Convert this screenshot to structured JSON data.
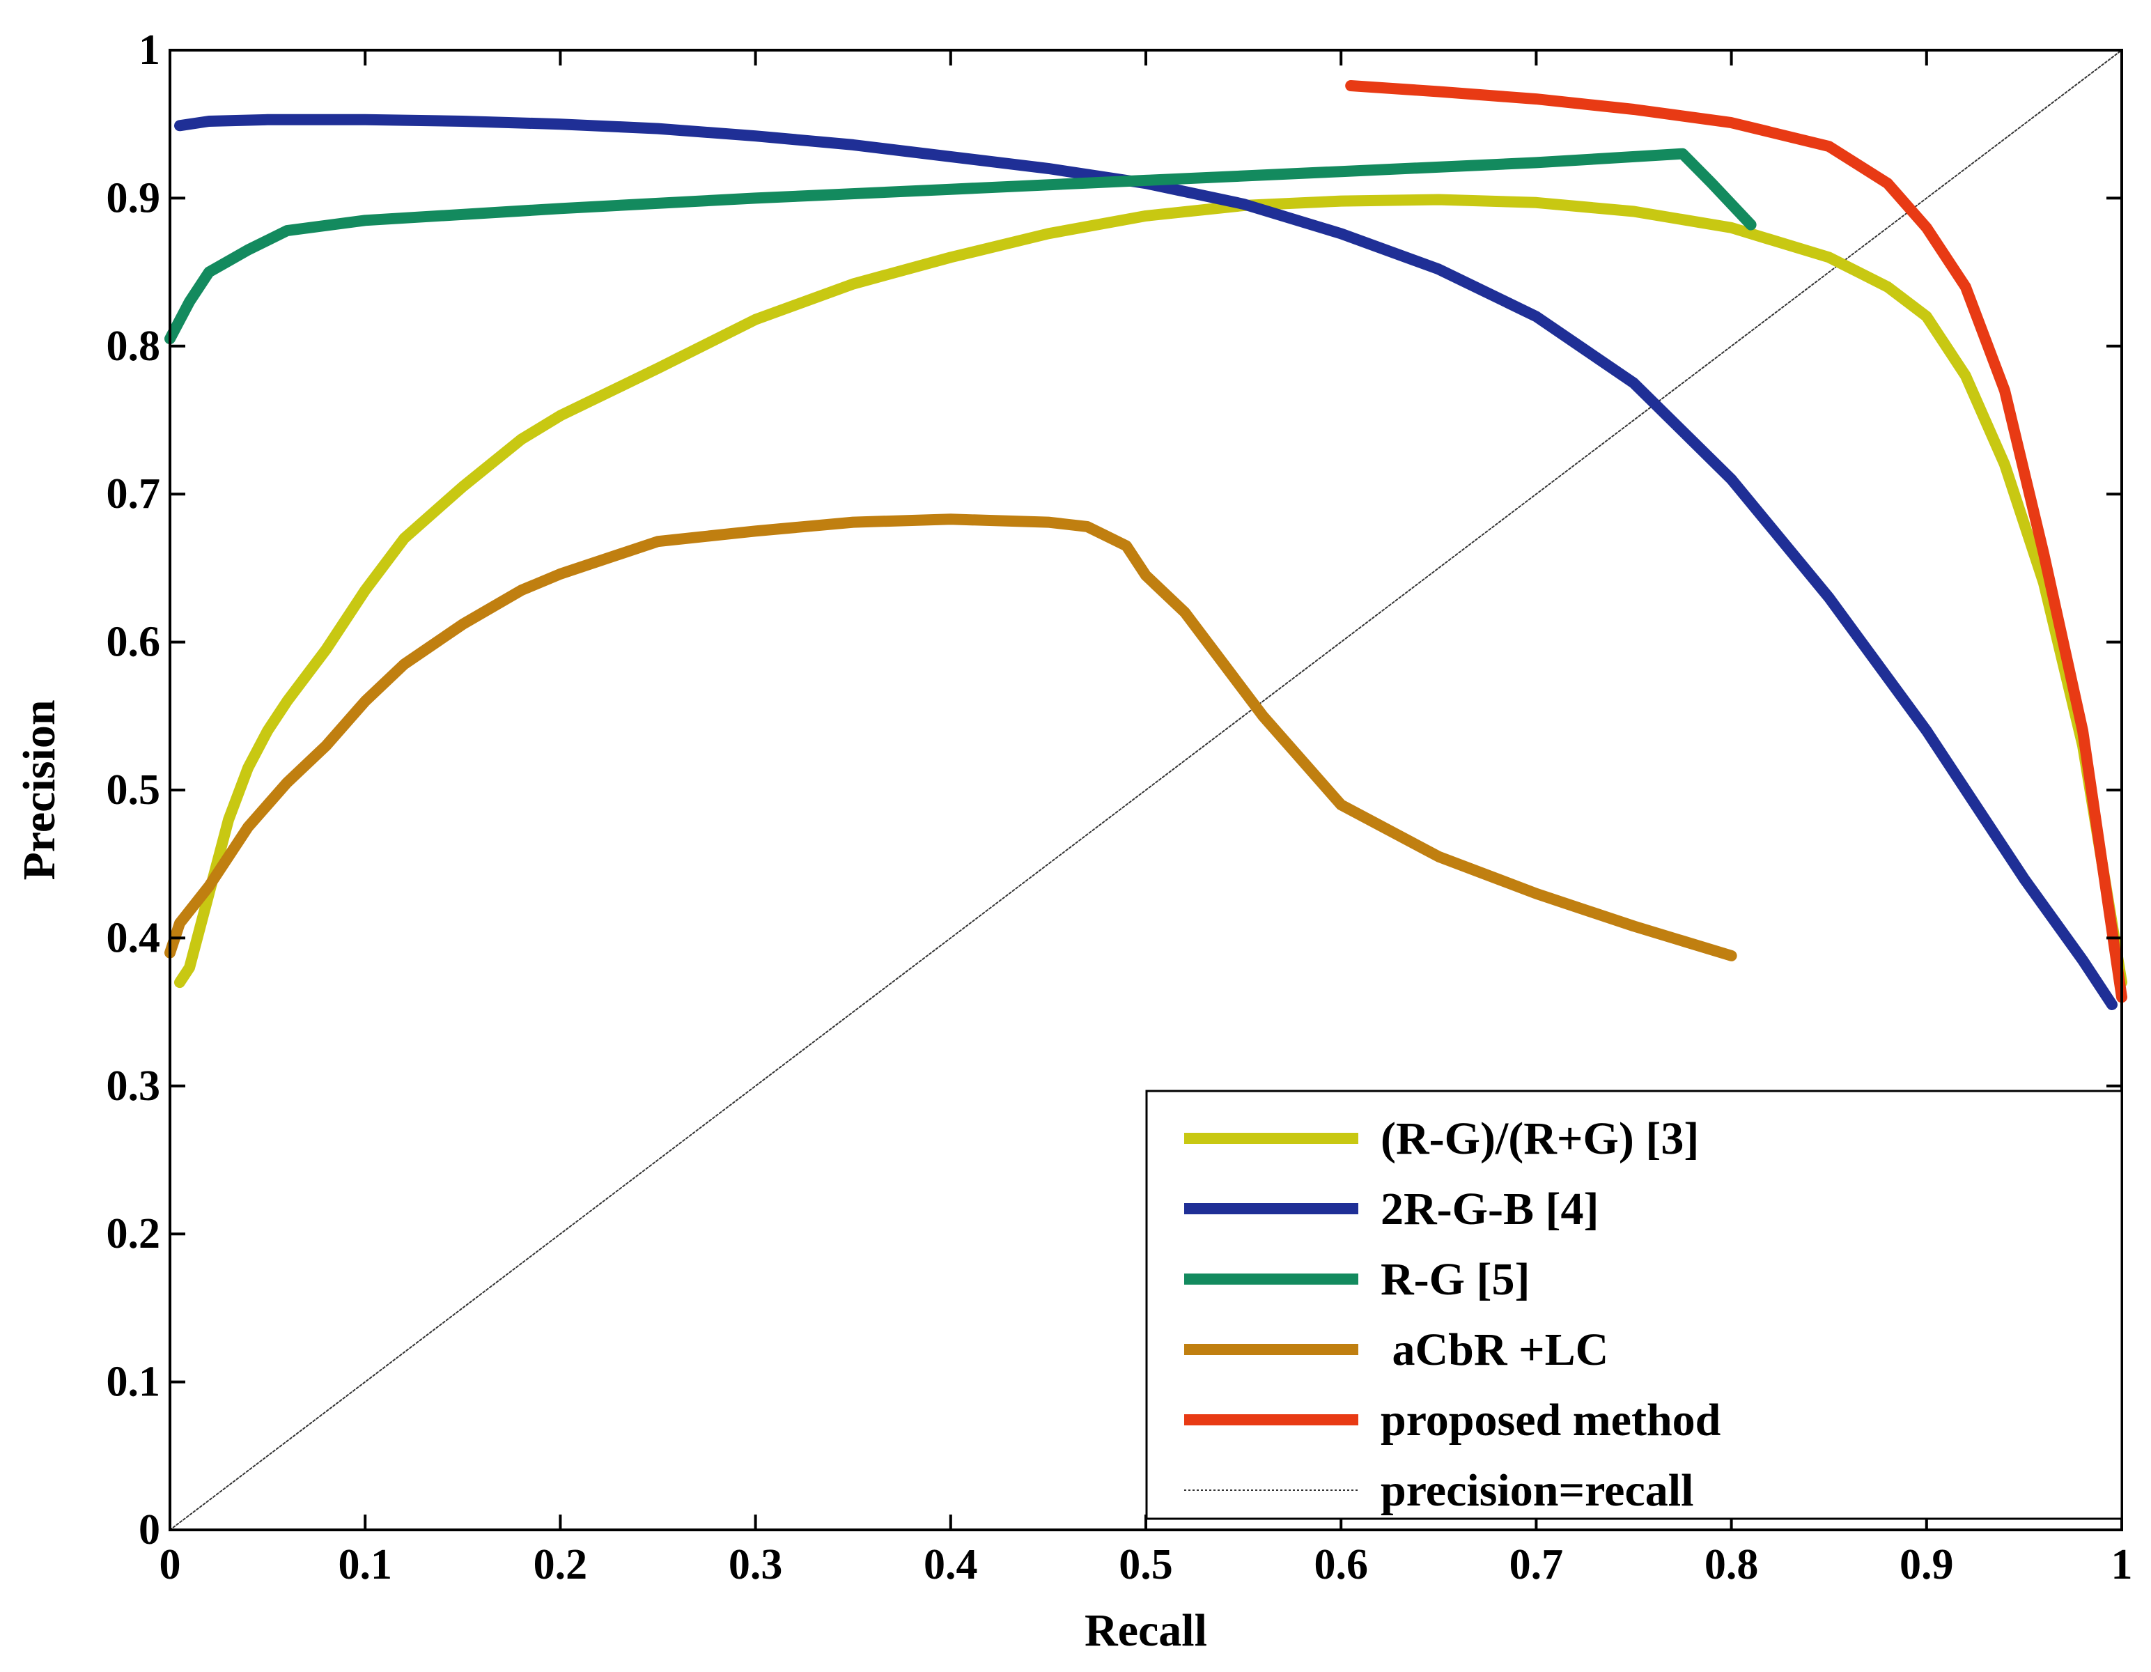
{
  "chart_data": {
    "type": "line",
    "title": "",
    "xlabel": "Recall",
    "ylabel": "Precision",
    "xlim": [
      0,
      1
    ],
    "ylim": [
      0,
      1
    ],
    "xticks": [
      0,
      0.1,
      0.2,
      0.3,
      0.4,
      0.5,
      0.6,
      0.7,
      0.8,
      0.9,
      1
    ],
    "xtick_labels": [
      "0",
      "0.1",
      "0.2",
      "0.3",
      "0.4",
      "0.5",
      "0.6",
      "0.7",
      "0.8",
      "0.9",
      "1"
    ],
    "yticks": [
      0,
      0.1,
      0.2,
      0.3,
      0.4,
      0.5,
      0.6,
      0.7,
      0.8,
      0.9,
      1
    ],
    "ytick_labels": [
      "0",
      "0.1",
      "0.2",
      "0.3",
      "0.4",
      "0.5",
      "0.6",
      "0.7",
      "0.8",
      "0.9",
      "1"
    ],
    "grid": false,
    "legend_position": "bottom-right",
    "series": [
      {
        "name": "(R-G)/(R+G) [3]",
        "color": "#c8c812",
        "style": "solid",
        "points": [
          [
            0.005,
            0.37
          ],
          [
            0.01,
            0.38
          ],
          [
            0.02,
            0.43
          ],
          [
            0.03,
            0.48
          ],
          [
            0.04,
            0.515
          ],
          [
            0.05,
            0.54
          ],
          [
            0.06,
            0.56
          ],
          [
            0.08,
            0.595
          ],
          [
            0.1,
            0.635
          ],
          [
            0.12,
            0.67
          ],
          [
            0.15,
            0.705
          ],
          [
            0.18,
            0.737
          ],
          [
            0.2,
            0.753
          ],
          [
            0.25,
            0.785
          ],
          [
            0.3,
            0.818
          ],
          [
            0.35,
            0.842
          ],
          [
            0.4,
            0.86
          ],
          [
            0.45,
            0.876
          ],
          [
            0.5,
            0.888
          ],
          [
            0.55,
            0.895
          ],
          [
            0.6,
            0.898
          ],
          [
            0.65,
            0.899
          ],
          [
            0.7,
            0.897
          ],
          [
            0.75,
            0.891
          ],
          [
            0.8,
            0.88
          ],
          [
            0.85,
            0.86
          ],
          [
            0.88,
            0.84
          ],
          [
            0.9,
            0.82
          ],
          [
            0.92,
            0.78
          ],
          [
            0.94,
            0.72
          ],
          [
            0.96,
            0.64
          ],
          [
            0.98,
            0.53
          ],
          [
            1.0,
            0.37
          ]
        ]
      },
      {
        "name": "2R-G-B [4]",
        "color": "#1f2f96",
        "style": "solid",
        "points": [
          [
            0.005,
            0.949
          ],
          [
            0.02,
            0.952
          ],
          [
            0.05,
            0.953
          ],
          [
            0.1,
            0.953
          ],
          [
            0.15,
            0.952
          ],
          [
            0.2,
            0.95
          ],
          [
            0.25,
            0.947
          ],
          [
            0.3,
            0.942
          ],
          [
            0.35,
            0.936
          ],
          [
            0.4,
            0.928
          ],
          [
            0.45,
            0.92
          ],
          [
            0.5,
            0.91
          ],
          [
            0.55,
            0.896
          ],
          [
            0.6,
            0.876
          ],
          [
            0.65,
            0.852
          ],
          [
            0.7,
            0.82
          ],
          [
            0.75,
            0.775
          ],
          [
            0.8,
            0.71
          ],
          [
            0.85,
            0.63
          ],
          [
            0.9,
            0.54
          ],
          [
            0.95,
            0.44
          ],
          [
            0.98,
            0.385
          ],
          [
            0.995,
            0.355
          ]
        ]
      },
      {
        "name": "R-G [5]",
        "color": "#138a5e",
        "style": "solid",
        "points": [
          [
            0.0,
            0.805
          ],
          [
            0.01,
            0.83
          ],
          [
            0.02,
            0.85
          ],
          [
            0.04,
            0.865
          ],
          [
            0.06,
            0.878
          ],
          [
            0.1,
            0.885
          ],
          [
            0.2,
            0.893
          ],
          [
            0.3,
            0.9
          ],
          [
            0.4,
            0.906
          ],
          [
            0.5,
            0.912
          ],
          [
            0.6,
            0.918
          ],
          [
            0.7,
            0.924
          ],
          [
            0.775,
            0.93
          ],
          [
            0.79,
            0.91
          ],
          [
            0.81,
            0.882
          ]
        ]
      },
      {
        "name": " aCbR +LC",
        "color": "#c07f10",
        "style": "solid",
        "points": [
          [
            0.0,
            0.39
          ],
          [
            0.005,
            0.41
          ],
          [
            0.02,
            0.435
          ],
          [
            0.04,
            0.475
          ],
          [
            0.06,
            0.505
          ],
          [
            0.08,
            0.53
          ],
          [
            0.1,
            0.56
          ],
          [
            0.12,
            0.585
          ],
          [
            0.15,
            0.612
          ],
          [
            0.18,
            0.635
          ],
          [
            0.2,
            0.646
          ],
          [
            0.25,
            0.668
          ],
          [
            0.3,
            0.675
          ],
          [
            0.35,
            0.681
          ],
          [
            0.4,
            0.683
          ],
          [
            0.45,
            0.681
          ],
          [
            0.47,
            0.678
          ],
          [
            0.49,
            0.665
          ],
          [
            0.5,
            0.645
          ],
          [
            0.52,
            0.62
          ],
          [
            0.54,
            0.585
          ],
          [
            0.56,
            0.55
          ],
          [
            0.58,
            0.52
          ],
          [
            0.6,
            0.49
          ],
          [
            0.65,
            0.455
          ],
          [
            0.7,
            0.43
          ],
          [
            0.75,
            0.408
          ],
          [
            0.8,
            0.388
          ]
        ]
      },
      {
        "name": "proposed method",
        "color": "#e83a14",
        "style": "solid",
        "points": [
          [
            0.605,
            0.976
          ],
          [
            0.65,
            0.972
          ],
          [
            0.7,
            0.967
          ],
          [
            0.75,
            0.96
          ],
          [
            0.8,
            0.951
          ],
          [
            0.85,
            0.935
          ],
          [
            0.88,
            0.91
          ],
          [
            0.9,
            0.88
          ],
          [
            0.92,
            0.84
          ],
          [
            0.94,
            0.77
          ],
          [
            0.96,
            0.66
          ],
          [
            0.98,
            0.54
          ],
          [
            1.0,
            0.36
          ]
        ]
      },
      {
        "name": "precision=recall",
        "color": "#333333",
        "style": "dotted",
        "points": [
          [
            0,
            0
          ],
          [
            1,
            1
          ]
        ]
      }
    ]
  }
}
